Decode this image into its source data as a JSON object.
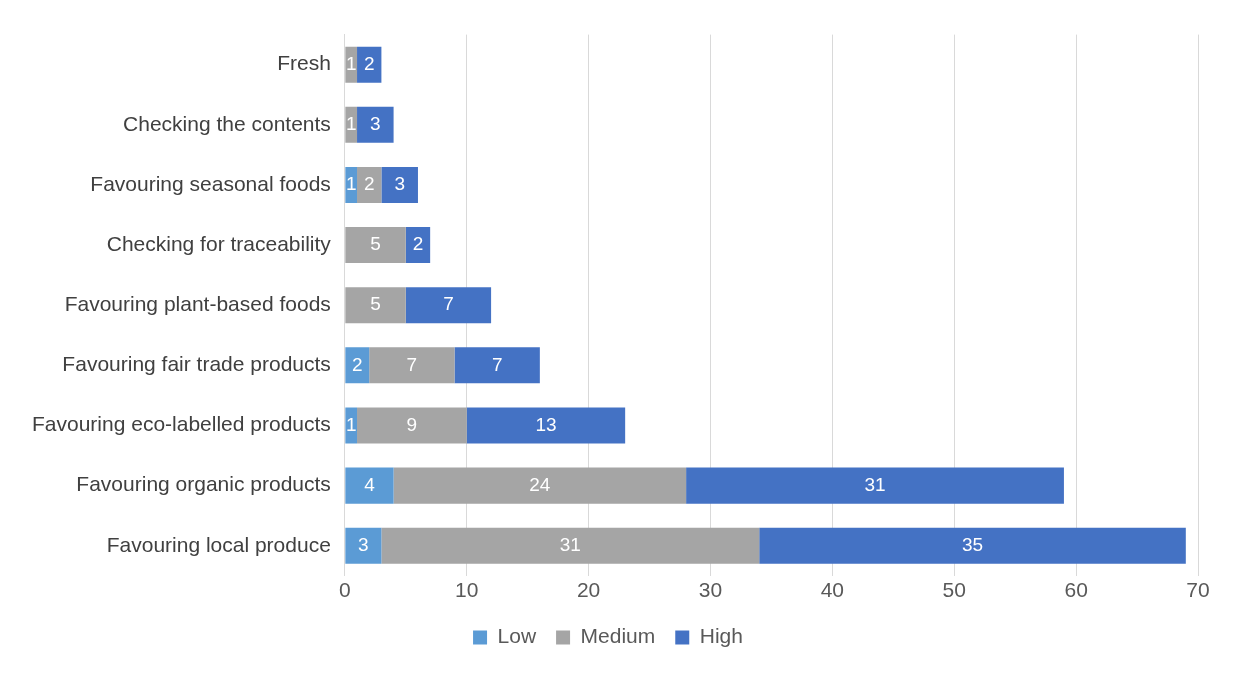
{
  "chart_data": {
    "type": "bar",
    "orientation": "horizontal",
    "stacked": true,
    "categories": [
      "Fresh",
      "Checking the contents",
      "Favouring seasonal foods",
      "Checking for traceability",
      "Favouring plant-based foods",
      "Favouring fair trade products",
      "Favouring eco-labelled products",
      "Favouring organic products",
      "Favouring local produce"
    ],
    "series": [
      {
        "name": "Low",
        "color": "#5b9bd5",
        "values": [
          null,
          null,
          1,
          null,
          null,
          2,
          1,
          4,
          3
        ]
      },
      {
        "name": "Medium",
        "color": "#a5a5a5",
        "values": [
          1,
          1,
          2,
          5,
          5,
          7,
          9,
          24,
          31
        ]
      },
      {
        "name": "High",
        "color": "#4472c4",
        "values": [
          2,
          3,
          3,
          2,
          7,
          7,
          13,
          31,
          35
        ]
      }
    ],
    "xlim": [
      0,
      70
    ],
    "xticks": [
      0,
      10,
      20,
      30,
      40,
      50,
      60,
      70
    ],
    "grid": "x",
    "legend": "bottom",
    "data_labels": true
  }
}
